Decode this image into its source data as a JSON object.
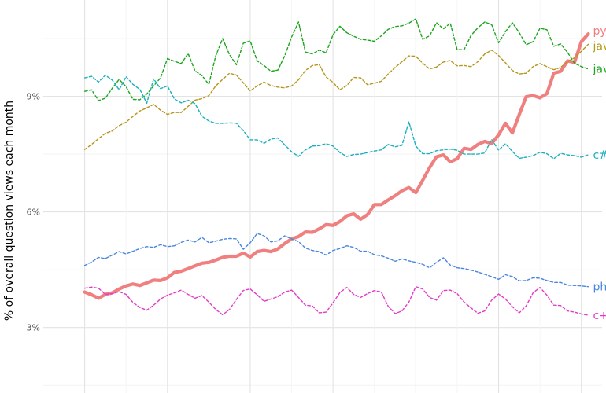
{
  "chart_data": {
    "type": "line",
    "title": "",
    "xlabel": "",
    "ylabel": "% of overall question views each month",
    "y_ticks": [
      3,
      6,
      9
    ],
    "y_tick_labels": [
      "3%",
      "6%",
      "9%"
    ],
    "ylim": [
      1.3,
      11.5
    ],
    "xlim": [
      -6,
      75
    ],
    "x_unit": "month index (no tick labels printed)",
    "grid": true,
    "legend": "direct labels at right end of each line",
    "series": [
      {
        "name": "python",
        "color": "#f07f7f",
        "style": "solid",
        "values": [
          3.92,
          3.85,
          3.76,
          3.86,
          3.9,
          4.0,
          4.08,
          4.13,
          4.09,
          4.16,
          4.23,
          4.22,
          4.29,
          4.43,
          4.46,
          4.53,
          4.6,
          4.67,
          4.69,
          4.75,
          4.82,
          4.85,
          4.85,
          4.93,
          4.83,
          4.97,
          5.0,
          4.97,
          5.04,
          5.18,
          5.3,
          5.36,
          5.48,
          5.47,
          5.56,
          5.67,
          5.65,
          5.75,
          5.9,
          5.95,
          5.81,
          5.93,
          6.19,
          6.19,
          6.31,
          6.42,
          6.55,
          6.63,
          6.5,
          6.82,
          7.15,
          7.43,
          7.48,
          7.3,
          7.38,
          7.65,
          7.62,
          7.75,
          7.83,
          7.77,
          8.0,
          8.3,
          8.05,
          8.53,
          8.99,
          9.02,
          8.96,
          9.07,
          9.6,
          9.65,
          9.92,
          9.88,
          10.42,
          10.62
        ]
      },
      {
        "name": "javascript",
        "color": "#b4961c",
        "style": "dashed",
        "values": [
          7.62,
          7.75,
          7.9,
          8.04,
          8.1,
          8.24,
          8.33,
          8.48,
          8.62,
          8.7,
          8.79,
          8.64,
          8.53,
          8.58,
          8.58,
          8.74,
          8.9,
          8.94,
          9.02,
          9.27,
          9.44,
          9.6,
          9.55,
          9.35,
          9.14,
          9.27,
          9.37,
          9.28,
          9.24,
          9.22,
          9.27,
          9.43,
          9.67,
          9.8,
          9.82,
          9.5,
          9.36,
          9.17,
          9.28,
          9.49,
          9.48,
          9.3,
          9.34,
          9.39,
          9.58,
          9.75,
          9.9,
          10.05,
          10.04,
          9.86,
          9.71,
          9.76,
          9.89,
          9.93,
          9.79,
          9.8,
          9.77,
          9.9,
          10.1,
          10.2,
          10.06,
          9.87,
          9.67,
          9.58,
          9.6,
          9.77,
          9.85,
          9.77,
          9.69,
          9.75,
          9.9,
          10.0,
          10.17,
          10.35
        ]
      },
      {
        "name": "java",
        "color": "#1ca51c",
        "style": "dashed",
        "values": [
          9.13,
          9.17,
          8.89,
          8.95,
          9.21,
          9.44,
          9.25,
          8.92,
          8.91,
          9.06,
          9.27,
          9.48,
          9.98,
          9.91,
          9.85,
          10.11,
          9.66,
          9.54,
          9.31,
          10.05,
          10.5,
          10.08,
          9.82,
          10.38,
          10.44,
          9.92,
          9.8,
          9.65,
          9.68,
          10.05,
          10.54,
          10.93,
          10.15,
          10.1,
          10.2,
          10.13,
          10.6,
          10.82,
          10.65,
          10.56,
          10.48,
          10.46,
          10.43,
          10.57,
          10.74,
          10.81,
          10.83,
          10.9,
          11.01,
          10.48,
          10.57,
          10.91,
          10.75,
          10.9,
          10.21,
          10.21,
          10.58,
          10.78,
          10.93,
          10.86,
          10.39,
          10.68,
          10.91,
          10.65,
          10.34,
          10.42,
          10.77,
          10.73,
          10.3,
          10.36,
          10.14,
          9.86,
          9.77,
          9.71
        ]
      },
      {
        "name": "c#",
        "color": "#1cb0be",
        "style": "dashed",
        "values": [
          9.48,
          9.52,
          9.37,
          9.55,
          9.42,
          9.17,
          9.51,
          9.31,
          9.18,
          8.82,
          9.45,
          9.2,
          9.27,
          8.93,
          8.83,
          8.9,
          8.81,
          8.48,
          8.36,
          8.3,
          8.3,
          8.31,
          8.3,
          8.11,
          7.87,
          7.87,
          7.78,
          7.89,
          7.92,
          7.74,
          7.56,
          7.44,
          7.61,
          7.71,
          7.72,
          7.77,
          7.71,
          7.54,
          7.44,
          7.49,
          7.5,
          7.54,
          7.58,
          7.61,
          7.75,
          7.69,
          7.73,
          8.34,
          7.71,
          7.51,
          7.51,
          7.59,
          7.61,
          7.63,
          7.6,
          7.5,
          7.5,
          7.5,
          7.53,
          7.88,
          7.6,
          7.77,
          7.57,
          7.39,
          7.42,
          7.46,
          7.55,
          7.51,
          7.38,
          7.52,
          7.48,
          7.46,
          7.42,
          7.48
        ]
      },
      {
        "name": "php",
        "color": "#4a86e0",
        "style": "dashed",
        "values": [
          4.61,
          4.7,
          4.82,
          4.79,
          4.88,
          4.97,
          4.91,
          4.98,
          5.05,
          5.1,
          5.08,
          5.15,
          5.1,
          5.12,
          5.21,
          5.27,
          5.22,
          5.34,
          5.2,
          5.24,
          5.29,
          5.31,
          5.3,
          5.03,
          5.2,
          5.44,
          5.38,
          5.22,
          5.25,
          5.38,
          5.3,
          5.23,
          5.06,
          5.0,
          4.97,
          4.88,
          5.0,
          5.05,
          5.12,
          5.08,
          4.98,
          4.98,
          4.89,
          4.86,
          4.8,
          4.72,
          4.78,
          4.73,
          4.69,
          4.64,
          4.55,
          4.69,
          4.81,
          4.62,
          4.55,
          4.53,
          4.49,
          4.44,
          4.38,
          4.32,
          4.25,
          4.37,
          4.32,
          4.21,
          4.22,
          4.29,
          4.28,
          4.22,
          4.17,
          4.17,
          4.1,
          4.09,
          4.08,
          4.06
        ]
      },
      {
        "name": "c++",
        "color": "#e23bc7",
        "style": "dashed",
        "values": [
          4.02,
          4.05,
          4.02,
          3.86,
          3.88,
          3.93,
          3.86,
          3.65,
          3.52,
          3.45,
          3.58,
          3.74,
          3.84,
          3.9,
          3.97,
          3.86,
          3.76,
          3.83,
          3.66,
          3.47,
          3.33,
          3.47,
          3.73,
          3.96,
          4.0,
          3.85,
          3.68,
          3.74,
          3.8,
          3.92,
          3.97,
          3.78,
          3.58,
          3.56,
          3.38,
          3.4,
          3.64,
          3.91,
          4.04,
          3.86,
          3.78,
          3.88,
          3.96,
          3.92,
          3.55,
          3.36,
          3.43,
          3.66,
          4.06,
          4.0,
          3.78,
          3.71,
          3.96,
          3.97,
          3.88,
          3.66,
          3.51,
          3.37,
          3.43,
          3.71,
          3.87,
          3.74,
          3.54,
          3.38,
          3.56,
          3.9,
          4.04,
          3.84,
          3.58,
          3.57,
          3.43,
          3.4,
          3.35,
          3.32
        ]
      }
    ]
  }
}
